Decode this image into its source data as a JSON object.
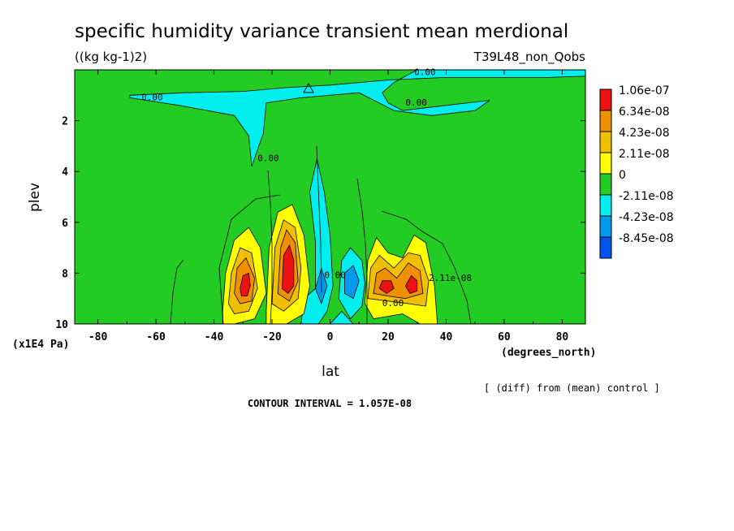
{
  "chart_data": {
    "type": "heatmap",
    "title": "specific humidity variance transient mean merdional",
    "units": "((kg kg-1)2)",
    "run_label": "T39L48_non_Qobs",
    "xlabel": "lat",
    "xunits": "(degrees_north)",
    "ylabel": "plev",
    "yunits": "(x1E4 Pa)",
    "xlim": [
      -88,
      88
    ],
    "ylim": [
      10,
      0
    ],
    "x_ticks": [
      -80,
      -60,
      -40,
      -20,
      0,
      20,
      40,
      60,
      80
    ],
    "y_ticks": [
      2,
      4,
      6,
      8,
      10
    ],
    "contour_interval_text": "CONTOUR INTERVAL = 1.057E-08",
    "note_text": "[ (diff) from (mean) control ]",
    "contour_labels": [
      {
        "text": "0.00",
        "x": -65,
        "y": 1.2
      },
      {
        "text": "0.00",
        "x": 29,
        "y": 0.2
      },
      {
        "text": "0.00",
        "x": 26,
        "y": 1.4
      },
      {
        "text": "0.00",
        "x": -25,
        "y": 3.6
      },
      {
        "text": "0.00",
        "x": -2,
        "y": 8.2
      },
      {
        "text": "0.00",
        "x": 18,
        "y": 9.3
      },
      {
        "text": "2.11e-08",
        "x": 34,
        "y": 8.3
      }
    ],
    "legend": {
      "labels": [
        "1.06e-07",
        "6.34e-08",
        "4.23e-08",
        "2.11e-08",
        "0",
        "-2.11e-08",
        "-4.23e-08",
        "-8.45e-08"
      ],
      "colors": [
        "#ee1111",
        "#f09000",
        "#f0c000",
        "#ffff00",
        "#22cc22",
        "#00eeee",
        "#0099ee",
        "#0055ee"
      ]
    },
    "colors": {
      "background": "#22cc22",
      "neg1": "#00eeee",
      "neg2": "#0099ee",
      "pos1": "#ffff00",
      "pos2": "#f0c000",
      "pos3": "#f09000",
      "pos4": "#ee1111"
    },
    "regions": [
      {
        "level": "neg1",
        "points": [
          [
            -69,
            1.0
          ],
          [
            -50,
            0.9
          ],
          [
            -30,
            0.85
          ],
          [
            -15,
            0.7
          ],
          [
            0,
            0.6
          ],
          [
            20,
            0.4
          ],
          [
            40,
            0.3
          ],
          [
            60,
            0.3
          ],
          [
            75,
            0.3
          ],
          [
            88,
            0.25
          ],
          [
            88,
            0.0
          ],
          [
            30,
            0.0
          ],
          [
            22,
            0.5
          ],
          [
            18,
            0.9
          ],
          [
            20,
            1.3
          ],
          [
            25,
            1.6
          ],
          [
            40,
            1.4
          ],
          [
            55,
            1.2
          ],
          [
            50,
            1.6
          ],
          [
            35,
            1.8
          ],
          [
            22,
            1.6
          ],
          [
            10,
            0.9
          ],
          [
            -10,
            1.1
          ],
          [
            -22,
            1.3
          ],
          [
            -23,
            2.5
          ],
          [
            -27,
            3.8
          ],
          [
            -28,
            2.6
          ],
          [
            -33,
            1.8
          ],
          [
            -52,
            1.4
          ],
          [
            -69,
            1.1
          ]
        ]
      },
      {
        "level": "neg1",
        "points": [
          [
            -5,
            6.8
          ],
          [
            -7,
            4.8
          ],
          [
            -4.5,
            3.5
          ],
          [
            -2,
            4.8
          ],
          [
            0,
            6.5
          ],
          [
            1,
            8.5
          ],
          [
            -1,
            9.5
          ],
          [
            -4,
            10
          ],
          [
            -10,
            10
          ],
          [
            -9,
            9
          ],
          [
            -5,
            8.6
          ]
        ]
      },
      {
        "level": "neg1",
        "points": [
          [
            4,
            7.5
          ],
          [
            7,
            7.0
          ],
          [
            11,
            7.5
          ],
          [
            12,
            8.4
          ],
          [
            11,
            9.3
          ],
          [
            7,
            9.8
          ],
          [
            3,
            9.0
          ]
        ]
      },
      {
        "level": "neg1",
        "points": [
          [
            0,
            10
          ],
          [
            4,
            9.5
          ],
          [
            8,
            10
          ]
        ]
      },
      {
        "level": "neg2",
        "points": [
          [
            5,
            8.0
          ],
          [
            8,
            7.7
          ],
          [
            10,
            8.3
          ],
          [
            8,
            9.0
          ],
          [
            5,
            8.8
          ]
        ]
      },
      {
        "level": "neg2",
        "points": [
          [
            -5,
            8.6
          ],
          [
            -3,
            7.8
          ],
          [
            -1,
            8.5
          ],
          [
            -3,
            9.2
          ]
        ]
      },
      {
        "level": "pos1",
        "points": [
          [
            -37,
            9.5
          ],
          [
            -36,
            8.0
          ],
          [
            -33,
            6.7
          ],
          [
            -28,
            6.2
          ],
          [
            -24,
            7.0
          ],
          [
            -22,
            8.8
          ],
          [
            -26,
            9.8
          ],
          [
            -33,
            10
          ],
          [
            -37,
            10
          ]
        ]
      },
      {
        "level": "pos1",
        "points": [
          [
            -22,
            9.5
          ],
          [
            -21,
            7.0
          ],
          [
            -18,
            5.6
          ],
          [
            -13,
            5.3
          ],
          [
            -9,
            6.5
          ],
          [
            -7,
            8.5
          ],
          [
            -9,
            9.6
          ],
          [
            -15,
            10
          ],
          [
            -22,
            10
          ]
        ]
      },
      {
        "level": "pos1",
        "points": [
          [
            12,
            9.2
          ],
          [
            13,
            7.5
          ],
          [
            16,
            6.6
          ],
          [
            20,
            7.2
          ],
          [
            25,
            7.4
          ],
          [
            29,
            6.5
          ],
          [
            33,
            6.8
          ],
          [
            36,
            8.5
          ],
          [
            37,
            10
          ],
          [
            31,
            10
          ],
          [
            25,
            9.6
          ],
          [
            15,
            9.8
          ]
        ]
      },
      {
        "level": "pos2",
        "points": [
          [
            -35,
            9.2
          ],
          [
            -34,
            8.0
          ],
          [
            -31,
            7.0
          ],
          [
            -27,
            7.2
          ],
          [
            -25,
            8.6
          ],
          [
            -28,
            9.5
          ],
          [
            -33,
            9.6
          ]
        ]
      },
      {
        "level": "pos2",
        "points": [
          [
            -20,
            9.2
          ],
          [
            -19,
            7.0
          ],
          [
            -16,
            5.9
          ],
          [
            -12,
            6.2
          ],
          [
            -10,
            7.8
          ],
          [
            -11,
            9.0
          ],
          [
            -16,
            9.5
          ]
        ]
      },
      {
        "level": "pos2",
        "points": [
          [
            13,
            9.0
          ],
          [
            14,
            7.8
          ],
          [
            17,
            7.3
          ],
          [
            22,
            7.8
          ],
          [
            27,
            7.2
          ],
          [
            31,
            7.3
          ],
          [
            34,
            8.3
          ],
          [
            33,
            9.3
          ],
          [
            27,
            9.2
          ],
          [
            20,
            9.1
          ]
        ]
      },
      {
        "level": "pos3",
        "points": [
          [
            -33,
            8.8
          ],
          [
            -32,
            7.8
          ],
          [
            -29,
            7.4
          ],
          [
            -26,
            8.2
          ],
          [
            -27,
            9.1
          ],
          [
            -31,
            9.2
          ]
        ]
      },
      {
        "level": "pos3",
        "points": [
          [
            -18,
            8.8
          ],
          [
            -17,
            7.0
          ],
          [
            -15,
            6.3
          ],
          [
            -12,
            6.8
          ],
          [
            -11,
            8.3
          ],
          [
            -14,
            9.1
          ]
        ]
      },
      {
        "level": "pos3",
        "points": [
          [
            15,
            8.8
          ],
          [
            16,
            8.0
          ],
          [
            19,
            7.8
          ],
          [
            23,
            8.2
          ],
          [
            27,
            7.6
          ],
          [
            31,
            7.9
          ],
          [
            32,
            8.8
          ],
          [
            26,
            9.0
          ],
          [
            20,
            8.9
          ]
        ]
      },
      {
        "level": "pos4",
        "points": [
          [
            -31,
            8.6
          ],
          [
            -30,
            8.1
          ],
          [
            -28,
            8.0
          ],
          [
            -27.5,
            8.5
          ],
          [
            -28.5,
            8.9
          ],
          [
            -30.5,
            8.9
          ]
        ]
      },
      {
        "level": "pos4",
        "points": [
          [
            -16.5,
            8.6
          ],
          [
            -16,
            7.3
          ],
          [
            -14,
            6.9
          ],
          [
            -12.5,
            7.5
          ],
          [
            -12.5,
            8.5
          ],
          [
            -14.5,
            8.8
          ]
        ]
      },
      {
        "level": "pos4",
        "points": [
          [
            17,
            8.6
          ],
          [
            18,
            8.3
          ],
          [
            21,
            8.3
          ],
          [
            22,
            8.6
          ],
          [
            19.5,
            8.8
          ]
        ]
      },
      {
        "level": "pos4",
        "points": [
          [
            26,
            8.5
          ],
          [
            28,
            8.1
          ],
          [
            30,
            8.3
          ],
          [
            30,
            8.7
          ],
          [
            27.5,
            8.8
          ]
        ]
      }
    ]
  }
}
